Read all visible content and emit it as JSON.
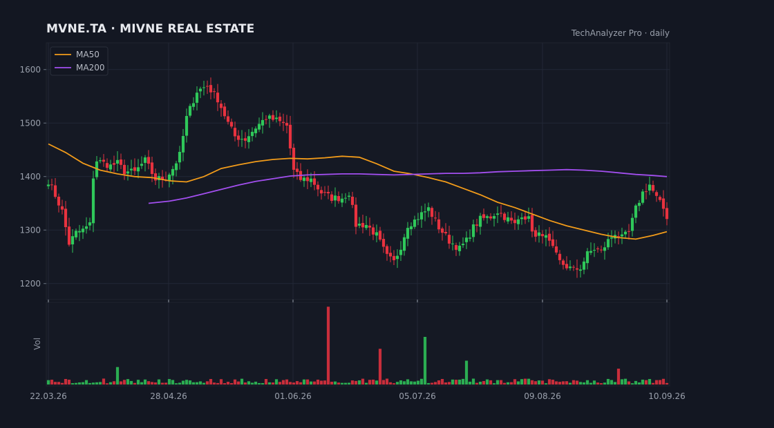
{
  "header": {
    "title": "MVNE.TA  ·  MIVNE REAL ESTATE",
    "source": "TechAnalyzer Pro · daily"
  },
  "colors": {
    "background": "#131722",
    "panel": "#151924",
    "grid": "#222836",
    "up": "#2fc85a",
    "down": "#e8323f",
    "ma50": "#f39c1a",
    "ma200": "#a34ff0",
    "text": "#9aa0ac"
  },
  "chart_data": {
    "type": "candlestick",
    "x_range": [
      "22.03.26",
      "10.09.26"
    ],
    "x_tick_labels": [
      "22.03.26",
      "28.04.26",
      "01.06.26",
      "05.07.26",
      "09.08.26",
      "10.09.26"
    ],
    "y_range": [
      1170,
      1650
    ],
    "y_ticks": [
      1200,
      1300,
      1400,
      1500,
      1600
    ],
    "grid": true,
    "legend": {
      "position": "top-left",
      "entries": [
        "MA50",
        "MA200"
      ]
    },
    "volume_axis_label": "Vol",
    "price_anchors": [
      [
        0,
        1392
      ],
      [
        2,
        1365
      ],
      [
        4,
        1335
      ],
      [
        6,
        1275
      ],
      [
        8,
        1295
      ],
      [
        10,
        1300
      ],
      [
        12,
        1310
      ],
      [
        13,
        1400
      ],
      [
        14,
        1430
      ],
      [
        16,
        1425
      ],
      [
        18,
        1420
      ],
      [
        20,
        1425
      ],
      [
        22,
        1410
      ],
      [
        25,
        1408
      ],
      [
        28,
        1430
      ],
      [
        31,
        1395
      ],
      [
        34,
        1398
      ],
      [
        36,
        1415
      ],
      [
        38,
        1440
      ],
      [
        40,
        1510
      ],
      [
        43,
        1560
      ],
      [
        46,
        1570
      ],
      [
        49,
        1545
      ],
      [
        52,
        1500
      ],
      [
        54,
        1475
      ],
      [
        57,
        1470
      ],
      [
        60,
        1492
      ],
      [
        63,
        1510
      ],
      [
        66,
        1505
      ],
      [
        69,
        1495
      ],
      [
        71,
        1410
      ],
      [
        73,
        1395
      ],
      [
        76,
        1395
      ],
      [
        79,
        1370
      ],
      [
        82,
        1360
      ],
      [
        85,
        1360
      ],
      [
        87,
        1370
      ],
      [
        89,
        1310
      ],
      [
        92,
        1310
      ],
      [
        95,
        1290
      ],
      [
        98,
        1250
      ],
      [
        100,
        1240
      ],
      [
        102,
        1270
      ],
      [
        104,
        1310
      ],
      [
        106,
        1318
      ],
      [
        108,
        1330
      ],
      [
        110,
        1340
      ],
      [
        113,
        1305
      ],
      [
        116,
        1280
      ],
      [
        119,
        1265
      ],
      [
        121,
        1280
      ],
      [
        123,
        1305
      ],
      [
        125,
        1320
      ],
      [
        128,
        1325
      ],
      [
        130,
        1335
      ],
      [
        132,
        1325
      ],
      [
        135,
        1310
      ],
      [
        137,
        1330
      ],
      [
        139,
        1320
      ],
      [
        141,
        1285
      ],
      [
        143,
        1295
      ],
      [
        145,
        1275
      ],
      [
        148,
        1240
      ],
      [
        150,
        1232
      ],
      [
        152,
        1225
      ],
      [
        154,
        1230
      ],
      [
        156,
        1255
      ],
      [
        158,
        1265
      ],
      [
        160,
        1260
      ],
      [
        162,
        1280
      ],
      [
        164,
        1295
      ],
      [
        166,
        1285
      ],
      [
        168,
        1295
      ],
      [
        170,
        1340
      ],
      [
        172,
        1370
      ],
      [
        174,
        1385
      ],
      [
        176,
        1360
      ],
      [
        178,
        1340
      ],
      [
        179,
        1325
      ]
    ],
    "volume_spikes": [
      [
        81,
        0.98
      ],
      [
        96,
        0.45
      ],
      [
        109,
        0.6
      ],
      [
        121,
        0.3
      ],
      [
        165,
        0.2
      ],
      [
        20,
        0.22
      ]
    ],
    "ma50": [
      [
        0,
        1461
      ],
      [
        5,
        1445
      ],
      [
        10,
        1425
      ],
      [
        15,
        1412
      ],
      [
        20,
        1405
      ],
      [
        25,
        1400
      ],
      [
        30,
        1398
      ],
      [
        35,
        1392
      ],
      [
        40,
        1390
      ],
      [
        45,
        1400
      ],
      [
        50,
        1415
      ],
      [
        55,
        1422
      ],
      [
        60,
        1428
      ],
      [
        65,
        1432
      ],
      [
        70,
        1434
      ],
      [
        75,
        1433
      ],
      [
        80,
        1435
      ],
      [
        85,
        1438
      ],
      [
        90,
        1436
      ],
      [
        95,
        1424
      ],
      [
        100,
        1410
      ],
      [
        105,
        1405
      ],
      [
        110,
        1398
      ],
      [
        115,
        1390
      ],
      [
        120,
        1378
      ],
      [
        125,
        1366
      ],
      [
        130,
        1352
      ],
      [
        135,
        1342
      ],
      [
        140,
        1330
      ],
      [
        145,
        1318
      ],
      [
        150,
        1308
      ],
      [
        155,
        1300
      ],
      [
        160,
        1292
      ],
      [
        165,
        1286
      ],
      [
        170,
        1283
      ],
      [
        175,
        1290
      ],
      [
        179,
        1297
      ]
    ],
    "ma200": [
      [
        29,
        1350
      ],
      [
        35,
        1354
      ],
      [
        40,
        1360
      ],
      [
        45,
        1368
      ],
      [
        50,
        1376
      ],
      [
        55,
        1384
      ],
      [
        60,
        1391
      ],
      [
        65,
        1396
      ],
      [
        70,
        1401
      ],
      [
        75,
        1403
      ],
      [
        80,
        1404
      ],
      [
        85,
        1405
      ],
      [
        90,
        1405
      ],
      [
        95,
        1404
      ],
      [
        100,
        1403
      ],
      [
        105,
        1404
      ],
      [
        110,
        1405
      ],
      [
        115,
        1406
      ],
      [
        120,
        1406
      ],
      [
        125,
        1407
      ],
      [
        130,
        1409
      ],
      [
        135,
        1410
      ],
      [
        140,
        1411
      ],
      [
        145,
        1412
      ],
      [
        150,
        1413
      ],
      [
        155,
        1412
      ],
      [
        160,
        1410
      ],
      [
        165,
        1407
      ],
      [
        170,
        1404
      ],
      [
        175,
        1402
      ],
      [
        179,
        1400
      ]
    ]
  }
}
